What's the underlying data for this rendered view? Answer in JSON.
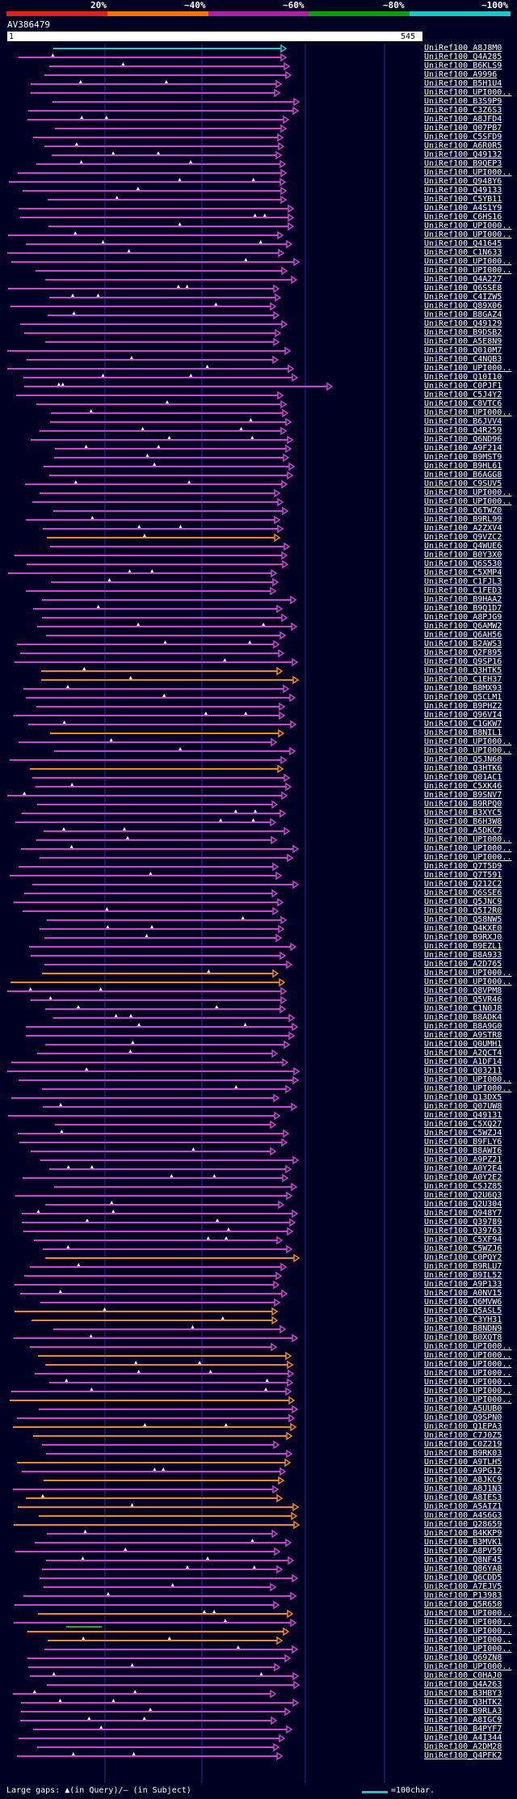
{
  "legend": {
    "labels": [
      "20%",
      "~40%",
      "~60%",
      "~80%",
      "~100%"
    ],
    "colors": [
      "#dd2222",
      "#ee7711",
      "#aa22aa",
      "#119911",
      "#22c4c4"
    ]
  },
  "query": {
    "title": "AV386479",
    "start": "1",
    "end": "545"
  },
  "colors": {
    "magenta": "#cc44cc",
    "orange": "#ee8822",
    "green": "#22aa22",
    "cyan": "#22cccc",
    "grid": "#223388"
  },
  "hits": [
    "UniRef100_A8J8M0",
    "UniRef100_Q4A285",
    "UniRef100_B6KLS9",
    "UniRef100_A9996",
    "UniRef100_B5H1U4",
    "UniRef100_UPI000..",
    "UniRef100_B3S9P9",
    "UniRef100_C3Z6S3",
    "UniRef100_A8JFD4",
    "UniRef100_Q07PB7",
    "UniRef100_C5SFD9",
    "UniRef100_A6R0R5",
    "UniRef100_Q49132",
    "UniRef100_B9QEP3",
    "UniRef100_UPI000..",
    "UniRef100_Q948Y6",
    "UniRef100_Q49133",
    "UniRef100_C5YB11",
    "UniRef100_A4S1Y9",
    "UniRef100_C6HS16",
    "UniRef100_UPI000..",
    "UniRef100_UPI000..",
    "UniRef100_Q41645",
    "UniRef100_C1N633",
    "UniRef100_UPI000..",
    "UniRef100_UPI000..",
    "UniRef100_Q4A227",
    "UniRef100_Q6SSE8",
    "UniRef100_C4IZW5",
    "UniRef100_Q89X06",
    "UniRef100_B8GAZ4",
    "UniRef100_Q49129",
    "UniRef100_B9DSB2",
    "UniRef100_A5E8N9",
    "UniRef100_Q010M7",
    "UniRef100_C4NQB3",
    "UniRef100_UPI000..",
    "UniRef100_Q10I10",
    "UniRef100_C0PJF1",
    "UniRef100_C5J4Y2",
    "UniRef100_C8VTC6",
    "UniRef100_UPI000..",
    "UniRef100_B6JVV4",
    "UniRef100_Q4R259",
    "UniRef100_Q6ND96",
    "UniRef100_A9F214",
    "UniRef100_B9MST9",
    "UniRef100_B9HL61",
    "UniRef100_B6AGG8",
    "UniRef100_C9SUV5",
    "UniRef100_UPI000..",
    "UniRef100_UPI000..",
    "UniRef100_Q6TWZ0",
    "UniRef100_B9RL99",
    "UniRef100_A2ZXV4",
    "UniRef100_Q9VZC2",
    "UniRef100_Q4WUE6",
    "UniRef100_B0Y3X0",
    "UniRef100_Q6S530",
    "UniRef100_C5XMP4",
    "UniRef100_C1FJL3",
    "UniRef100_C1FED3",
    "UniRef100_B9HAA2",
    "UniRef100_B9Q1D7",
    "UniRef100_A8PJG9",
    "UniRef100_Q6AMW2",
    "UniRef100_Q6AH56",
    "UniRef100_B2AWS3",
    "UniRef100_Q2F895",
    "UniRef100_Q9SP16",
    "UniRef100_Q3HTK5",
    "UniRef100_C1EH37",
    "UniRef100_B8MX93",
    "UniRef100_Q5CLM1",
    "UniRef100_B9PHZ2",
    "UniRef100_Q96VI4",
    "UniRef100_C1GKW7",
    "UniRef100_B8NIL1",
    "UniRef100_UPI000..",
    "UniRef100_UPI000..",
    "UniRef100_Q5JN60",
    "UniRef100_Q3HTK6",
    "UniRef100_Q01AC1",
    "UniRef100_C5XK46",
    "UniRef100_B9SNV7",
    "UniRef100_B9RPQ0",
    "UniRef100_B3XYC5",
    "UniRef100_B6H3W8",
    "UniRef100_A5DKC7",
    "UniRef100_UPI000..",
    "UniRef100_UPI000..",
    "UniRef100_UPI000..",
    "UniRef100_Q7T5D9",
    "UniRef100_Q7T591",
    "UniRef100_Q212C2",
    "UniRef100_Q6SSE6",
    "UniRef100_Q5JNC9",
    "UniRef100_Q5I2R0",
    "UniRef100_Q58NW5",
    "UniRef100_Q4KXE0",
    "UniRef100_B9RXJ0",
    "UniRef100_B9EZL1",
    "UniRef100_B8A933",
    "UniRef100_A2D765",
    "UniRef100_UPI000..",
    "UniRef100_UPI000..",
    "UniRef100_Q8VPM8",
    "UniRef100_Q5VR46",
    "UniRef100_C1N0J8",
    "UniRef100_B8ADK4",
    "UniRef100_B8A9G0",
    "UniRef100_A9STR8",
    "UniRef100_Q0UMH1",
    "UniRef100_A2QCT4",
    "UniRef100_A1DF14",
    "UniRef100_Q03211",
    "UniRef100_UPI000..",
    "UniRef100_UPI000..",
    "UniRef100_Q13DX5",
    "UniRef100_Q07UW8",
    "UniRef100_Q49131",
    "UniRef100_C5XQ27",
    "UniRef100_C5WZJ4",
    "UniRef100_B9FLY6",
    "UniRef100_B8AWI6",
    "UniRef100_A9PZ21",
    "UniRef100_A0Y2E4",
    "UniRef100_A0Y2E2",
    "UniRef100_C5JZ85",
    "UniRef100_Q2U6Q3",
    "UniRef100_Q2U304",
    "UniRef100_Q948Y7",
    "UniRef100_Q39789",
    "UniRef100_Q39763",
    "UniRef100_C5XF94",
    "UniRef100_C5WZJ6",
    "UniRef100_C0PQY2",
    "UniRef100_B9RLU7",
    "UniRef100_B9IL52",
    "UniRef100_A9P133",
    "UniRef100_A0NV15",
    "UniRef100_Q6MVW6",
    "UniRef100_Q5ASL5",
    "UniRef100_C3YH31",
    "UniRef100_B8NDN9",
    "UniRef100_B0XQT8",
    "UniRef100_UPI000..",
    "UniRef100_UPI000..",
    "UniRef100_UPI000..",
    "UniRef100_UPI000..",
    "UniRef100_UPI000..",
    "UniRef100_UPI000..",
    "UniRef100_UPI000..",
    "UniRef100_A5UUB0",
    "UniRef100_Q9SPN0",
    "UniRef100_Q1EPA3",
    "UniRef100_C7J0Z5",
    "UniRef100_C0Z219",
    "UniRef100_B9RK03",
    "UniRef100_A9TLH5",
    "UniRef100_A9PG12",
    "UniRef100_A8JKC9",
    "UniRef100_A8J1N3",
    "UniRef100_A8IES3",
    "UniRef100_A5AIZ1",
    "UniRef100_A4S6G3",
    "UniRef100_Q28659",
    "UniRef100_B4KKP9",
    "UniRef100_B3MVK1",
    "UniRef100_A8PV59",
    "UniRef100_Q8NF45",
    "UniRef100_Q86YA8",
    "UniRef100_Q6CDD5",
    "UniRef100_A7EJV5",
    "UniRef100_P13983",
    "UniRef100_Q5R650",
    "UniRef100_UPI000..",
    "UniRef100_UPI000..",
    "UniRef100_UPI000..",
    "UniRef100_UPI000..",
    "UniRef100_UPI000..",
    "UniRef100_Q69ZN8",
    "UniRef100_UPI000..",
    "UniRef100_C0HAJ0",
    "UniRef100_Q4A263",
    "UniRef100_B3HBY3",
    "UniRef100_Q3HTK2",
    "UniRef100_B9RLA3",
    "UniRef100_A8IGC9",
    "UniRef100_B4PYF7",
    "UniRef100_A4I344",
    "UniRef100_A2DM28",
    "UniRef100_Q4PFK2"
  ],
  "footer": {
    "gap_text": "Large gaps: ▲(in Query)/– (in Subject)",
    "scale_text": "=100char."
  }
}
